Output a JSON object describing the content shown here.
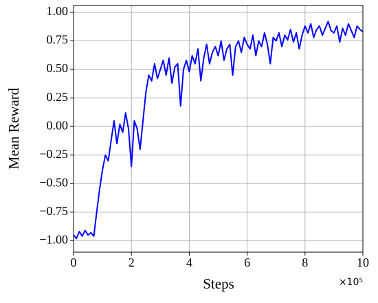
{
  "chart_data": {
    "type": "line",
    "xlabel": "Steps",
    "ylabel": "Mean Reward",
    "x_offset_label": "×10⁵",
    "color": "#0000ff",
    "grid": true,
    "xlim": [
      0,
      10
    ],
    "ylim": [
      -1.1,
      1.06
    ],
    "xticks": [
      0,
      2,
      4,
      6,
      8,
      10
    ],
    "yticks": [
      {
        "value": -1.0,
        "label": "−1.00"
      },
      {
        "value": -0.75,
        "label": "−0.75"
      },
      {
        "value": -0.5,
        "label": "−0.50"
      },
      {
        "value": -0.25,
        "label": "−0.25"
      },
      {
        "value": 0.0,
        "label": "0.00"
      },
      {
        "value": 0.25,
        "label": "0.25"
      },
      {
        "value": 0.5,
        "label": "0.50"
      },
      {
        "value": 0.75,
        "label": "0.75"
      },
      {
        "value": 1.0,
        "label": "1.00"
      }
    ],
    "x": [
      0,
      0.1,
      0.2,
      0.3,
      0.4,
      0.5,
      0.6,
      0.7,
      0.8,
      0.9,
      1,
      1.1,
      1.2,
      1.3,
      1.4,
      1.5,
      1.6,
      1.7,
      1.8,
      1.9,
      2,
      2.1,
      2.2,
      2.3,
      2.4,
      2.5,
      2.6,
      2.7,
      2.8,
      2.9,
      3,
      3.1,
      3.2,
      3.3,
      3.4,
      3.5,
      3.6,
      3.7,
      3.8,
      3.9,
      4,
      4.1,
      4.2,
      4.3,
      4.4,
      4.5,
      4.6,
      4.7,
      4.8,
      4.9,
      5,
      5.1,
      5.2,
      5.3,
      5.4,
      5.5,
      5.6,
      5.7,
      5.8,
      5.9,
      6,
      6.1,
      6.2,
      6.3,
      6.4,
      6.5,
      6.6,
      6.7,
      6.8,
      6.9,
      7,
      7.1,
      7.2,
      7.3,
      7.4,
      7.5,
      7.6,
      7.7,
      7.8,
      7.9,
      8,
      8.1,
      8.2,
      8.3,
      8.4,
      8.5,
      8.6,
      8.7,
      8.8,
      8.9,
      9,
      9.1,
      9.2,
      9.3,
      9.4,
      9.5,
      9.6,
      9.7,
      9.8,
      9.9,
      10
    ],
    "values": [
      -0.95,
      -0.98,
      -0.92,
      -0.96,
      -0.91,
      -0.95,
      -0.93,
      -0.96,
      -0.75,
      -0.55,
      -0.38,
      -0.25,
      -0.3,
      -0.12,
      0.05,
      -0.15,
      0.02,
      -0.05,
      0.12,
      -0.02,
      -0.35,
      0.05,
      -0.02,
      -0.2,
      0.05,
      0.3,
      0.45,
      0.4,
      0.55,
      0.42,
      0.5,
      0.58,
      0.45,
      0.6,
      0.38,
      0.52,
      0.55,
      0.18,
      0.5,
      0.58,
      0.48,
      0.62,
      0.55,
      0.68,
      0.4,
      0.6,
      0.72,
      0.55,
      0.65,
      0.7,
      0.62,
      0.75,
      0.58,
      0.68,
      0.72,
      0.45,
      0.7,
      0.75,
      0.65,
      0.78,
      0.72,
      0.68,
      0.8,
      0.62,
      0.75,
      0.7,
      0.82,
      0.72,
      0.55,
      0.78,
      0.75,
      0.82,
      0.7,
      0.8,
      0.76,
      0.85,
      0.74,
      0.82,
      0.68,
      0.8,
      0.88,
      0.82,
      0.9,
      0.78,
      0.85,
      0.88,
      0.8,
      0.86,
      0.92,
      0.84,
      0.82,
      0.88,
      0.74,
      0.86,
      0.8,
      0.9,
      0.84,
      0.78,
      0.88,
      0.85,
      0.83
    ]
  }
}
